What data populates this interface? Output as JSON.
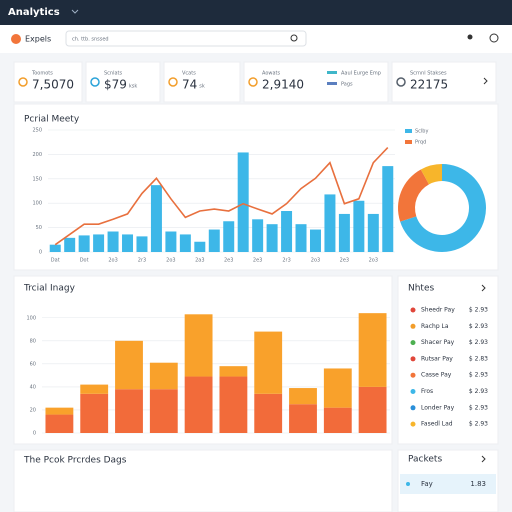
{
  "header": {
    "title": "Analytics"
  },
  "toolbar": {
    "brand": "Expels",
    "search": "ch. ttb. snssed"
  },
  "kpis": [
    {
      "label": "Toomots",
      "value": "7,5070",
      "color": "#f29d2a"
    },
    {
      "label": "Scnlats",
      "value": "$79",
      "unit": "ksk",
      "color": "#2aa3d9"
    },
    {
      "label": "Vcats",
      "value": "74",
      "unit": "sk",
      "color": "#f29d2a"
    },
    {
      "label": "Aowats",
      "value": "2,9140",
      "color": "#f29d2a"
    },
    {
      "label": "Scrnnl Stakses",
      "value": "22175",
      "color": "#555f6b"
    }
  ],
  "kpi_legend": [
    {
      "label": "Aaul Eurge Emp",
      "color": "#3fb6c9"
    },
    {
      "label": "Pags",
      "color": "#5b7fbf"
    }
  ],
  "chart_data": [
    {
      "type": "bar_line",
      "title": "Pcrial Meety",
      "categories": [
        "Dat",
        null,
        "Dot",
        null,
        "2o3",
        null,
        "2r3",
        null,
        "2o3",
        null,
        "2a3",
        null,
        "2e3",
        null,
        "2e3",
        null,
        "2r3",
        null,
        "2o3",
        null,
        "2e3",
        null,
        "2o3",
        null
      ],
      "series": [
        {
          "type": "bar",
          "color": "#3db7e8",
          "values": [
            15,
            29,
            34,
            36,
            42,
            36,
            32,
            137,
            42,
            36,
            21,
            46,
            63,
            204,
            67,
            57,
            84,
            57,
            46,
            118,
            78,
            105,
            78,
            176
          ]
        },
        {
          "type": "line",
          "color": "#e8703e",
          "values": [
            15,
            36,
            57,
            57,
            67,
            78,
            120,
            151,
            109,
            71,
            84,
            88,
            84,
            99,
            88,
            78,
            99,
            130,
            151,
            183,
            99,
            109,
            183,
            214
          ]
        }
      ],
      "ylim": [
        0,
        250
      ],
      "yticks": [
        0,
        50,
        100,
        150,
        200,
        250
      ],
      "grid": true
    },
    {
      "type": "pie",
      "categories": [
        "Sclby",
        "Prqd",
        null
      ],
      "values": [
        70,
        22,
        8
      ],
      "colors": [
        "#3db7e8",
        "#f2753a",
        "#f7b52b"
      ]
    },
    {
      "type": "stacked_bar",
      "title": "Trcial Inagy",
      "series": [
        {
          "color": "#f26b3a",
          "values": [
            16,
            34,
            38,
            38,
            49,
            49,
            34,
            25,
            22,
            40
          ]
        },
        {
          "color": "#f9a12b",
          "values": [
            6,
            8,
            42,
            23,
            54,
            9,
            54,
            14,
            34,
            64
          ]
        }
      ],
      "ylim": [
        0,
        105
      ],
      "yticks": [
        0,
        20,
        40,
        60,
        80,
        100
      ],
      "grid": true
    }
  ],
  "notes": {
    "title": "Nhtes",
    "items": [
      {
        "label": "Sheedr Pay",
        "value": "$ 2.93",
        "color": "#e0463a"
      },
      {
        "label": "Rachp La",
        "value": "$ 2.93",
        "color": "#f29d2a"
      },
      {
        "label": "Shacer Pay",
        "value": "$ 2.93",
        "color": "#4caf50"
      },
      {
        "label": "Rutsar Pay",
        "value": "$ 2.83",
        "color": "#e0463a"
      },
      {
        "label": "Casse Pay",
        "value": "$ 2.93",
        "color": "#f2753a"
      },
      {
        "label": "Fros",
        "value": "$ 2.93",
        "color": "#3db7e8"
      },
      {
        "label": "Londer Pay",
        "value": "$ 2.93",
        "color": "#2a8fd9"
      },
      {
        "label": "Fasedl Lad",
        "value": "$ 2.93",
        "color": "#f7b52b"
      }
    ]
  },
  "bottom": {
    "left_title": "The Pcok Prcrdes Dags",
    "right_title": "Packets",
    "row": {
      "label": "Fay",
      "value": "1.83"
    }
  }
}
